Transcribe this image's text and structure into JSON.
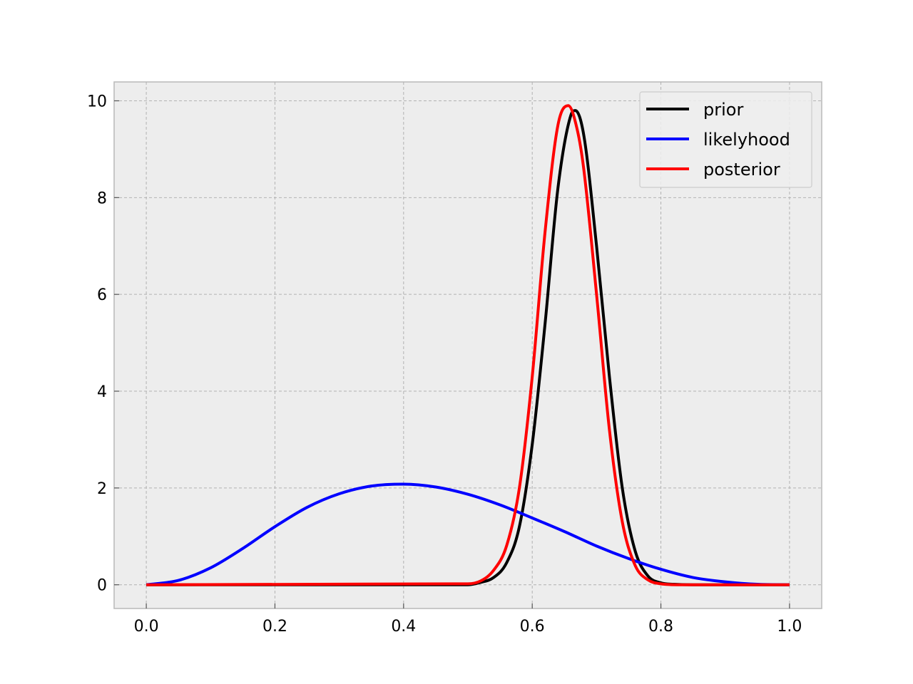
{
  "chart_data": {
    "type": "line",
    "title": "",
    "xlabel": "",
    "ylabel": "",
    "xlim": [
      -0.05,
      1.05
    ],
    "ylim": [
      -0.49,
      10.39
    ],
    "grid": true,
    "legend_position": "top-right",
    "x_ticks": [
      "0.0",
      "0.2",
      "0.4",
      "0.6",
      "0.8",
      "1.0"
    ],
    "y_ticks": [
      "0",
      "2",
      "4",
      "6",
      "8",
      "10"
    ],
    "series": [
      {
        "name": "prior",
        "color": "#000000",
        "x": [
          0.0,
          0.5,
          0.52,
          0.54,
          0.56,
          0.58,
          0.6,
          0.62,
          0.64,
          0.66,
          0.667,
          0.68,
          0.7,
          0.72,
          0.74,
          0.76,
          0.78,
          0.8,
          0.82,
          0.85,
          1.0
        ],
        "y": [
          0.0,
          0.0,
          0.05,
          0.15,
          0.45,
          1.2,
          2.9,
          5.4,
          8.2,
          9.7,
          9.8,
          9.3,
          7.0,
          4.3,
          2.0,
          0.7,
          0.18,
          0.04,
          0.01,
          0.0,
          0.0
        ]
      },
      {
        "name": "likelyhood",
        "color": "#0000ff",
        "x": [
          0.0,
          0.05,
          0.1,
          0.15,
          0.2,
          0.25,
          0.3,
          0.35,
          0.4,
          0.45,
          0.5,
          0.55,
          0.6,
          0.65,
          0.7,
          0.75,
          0.8,
          0.85,
          0.9,
          0.95,
          1.0
        ],
        "y": [
          0.0,
          0.09,
          0.35,
          0.75,
          1.2,
          1.6,
          1.88,
          2.04,
          2.08,
          2.02,
          1.87,
          1.65,
          1.38,
          1.1,
          0.8,
          0.54,
          0.32,
          0.15,
          0.06,
          0.01,
          0.0
        ]
      },
      {
        "name": "posterior",
        "color": "#ff0000",
        "x": [
          0.0,
          0.5,
          0.52,
          0.54,
          0.56,
          0.58,
          0.6,
          0.62,
          0.64,
          0.656,
          0.67,
          0.68,
          0.7,
          0.72,
          0.74,
          0.76,
          0.78,
          0.8,
          0.83,
          1.0
        ],
        "y": [
          0.0,
          0.02,
          0.08,
          0.3,
          0.8,
          2.0,
          4.3,
          7.3,
          9.5,
          9.9,
          9.4,
          8.6,
          6.0,
          3.2,
          1.3,
          0.4,
          0.1,
          0.02,
          0.0,
          0.0
        ]
      }
    ]
  }
}
